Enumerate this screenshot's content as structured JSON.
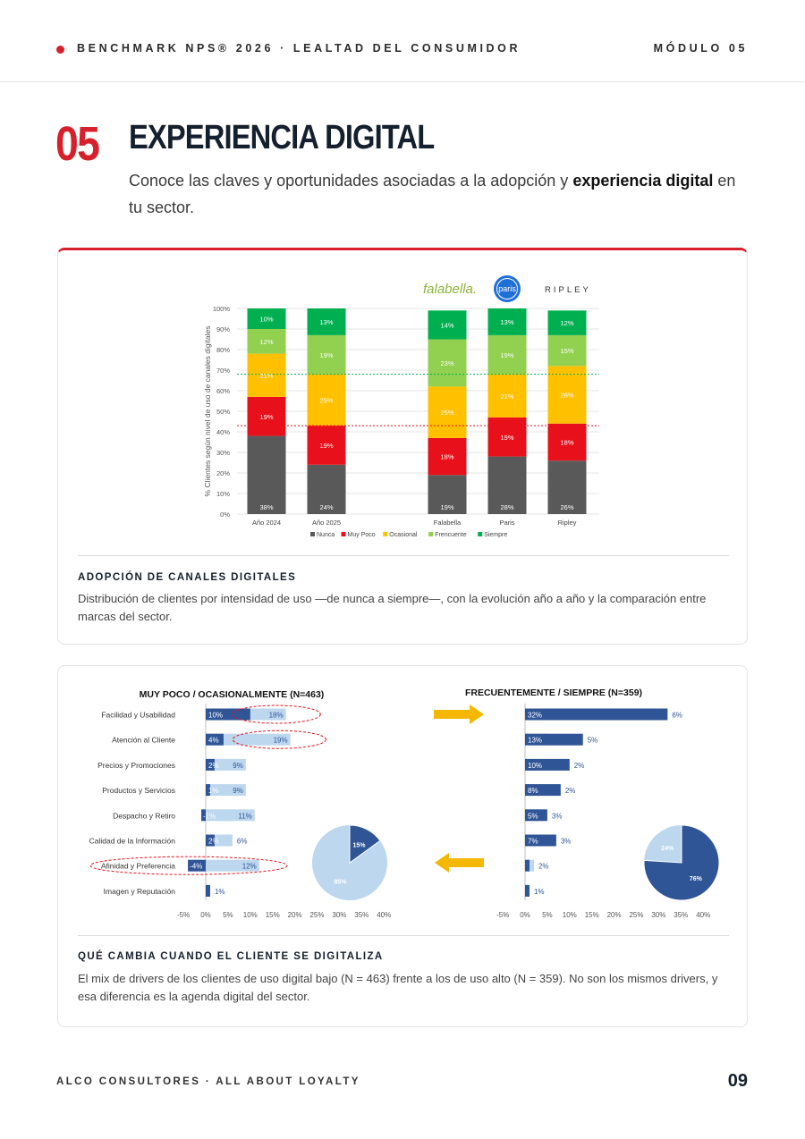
{
  "header": {
    "brand": "BENCHMARK NPS® 2026 · LEALTAD DEL CONSUMIDOR",
    "module": "MÓDULO 05"
  },
  "section": {
    "number": "05",
    "title": "EXPERIENCIA DIGITAL",
    "lead_before": "Conoce las claves y oportunidades asociadas a la adopción y ",
    "lead_bold": "experiencia digital",
    "lead_after": " en tu sector."
  },
  "logos": {
    "falabella": "falabella.",
    "paris": "paris",
    "ripley": "RIPLEY"
  },
  "colors": {
    "accent": "#d6202b",
    "navy": "#15202e",
    "nunca": "#595959",
    "muy_poco": "#e8101a",
    "ocasional": "#ffc000",
    "frecuente": "#92d050",
    "siempre": "#00b050",
    "bar_dark": "#2f5597",
    "bar_light": "#bdd7ee"
  },
  "chart_data": [
    {
      "type": "bar",
      "stacked": true,
      "ylabel": "% Clientes según nivel de uso de canales digitales",
      "ylim": [
        0,
        100
      ],
      "yticks": [
        "0%",
        "10%",
        "20%",
        "30%",
        "40%",
        "50%",
        "60%",
        "70%",
        "80%",
        "90%",
        "100%"
      ],
      "categories": [
        "Año 2024",
        "Año 2025",
        "Falabella",
        "Paris",
        "Ripley"
      ],
      "series": [
        {
          "name": "Nunca",
          "values": [
            38,
            24,
            19,
            28,
            26
          ]
        },
        {
          "name": "Muy Poco",
          "values": [
            19,
            19,
            18,
            19,
            18
          ]
        },
        {
          "name": "Ocasional",
          "values": [
            21,
            25,
            25,
            21,
            28
          ]
        },
        {
          "name": "Frencuente",
          "values": [
            12,
            19,
            23,
            19,
            15
          ]
        },
        {
          "name": "Siempre",
          "values": [
            10,
            13,
            14,
            13,
            12
          ]
        }
      ],
      "reference_lines": [
        43,
        68
      ],
      "legend": "bottom"
    },
    {
      "type": "bar",
      "orientation": "horizontal",
      "title": "MUY POCO / OCASIONALMENTE (N=463)",
      "categories": [
        "Facilidad y Usabilidad",
        "Atención al Cliente",
        "Precios y Promociones",
        "Productos y Servicios",
        "Despacho y Retiro",
        "Calidad de la Información",
        "Afinidad y Preferencia",
        "Imagen y Reputación"
      ],
      "dark_values": [
        10,
        4,
        2,
        1,
        -1,
        2,
        -4,
        1
      ],
      "dark_labels": [
        "10%",
        "4%",
        "2%",
        "1%",
        "-1%",
        "2%",
        "-4%",
        ""
      ],
      "light_values": [
        18,
        19,
        9,
        9,
        11,
        6,
        12,
        1
      ],
      "light_labels": [
        "18%",
        "19%",
        "9%",
        "9%",
        "11%",
        "6%",
        "12%",
        "1%"
      ],
      "highlighted": [
        "Facilidad y Usabilidad",
        "Atención al Cliente",
        "Afinidad y Preferencia"
      ],
      "xlim": [
        -5,
        40
      ],
      "xticks": [
        "-5%",
        "0%",
        "5%",
        "10%",
        "15%",
        "20%",
        "25%",
        "30%",
        "35%",
        "40%"
      ],
      "pie": {
        "values": [
          15,
          85
        ],
        "labels": [
          "15%",
          "85%"
        ]
      }
    },
    {
      "type": "bar",
      "orientation": "horizontal",
      "title": "FRECUENTEMENTE / SIEMPRE (N=359)",
      "dark_values": [
        32,
        13,
        10,
        8,
        5,
        7,
        1,
        1
      ],
      "dark_labels": [
        "32%",
        "13%",
        "10%",
        "8%",
        "5%",
        "7%",
        "",
        ""
      ],
      "light_values": [
        6,
        5,
        2,
        2,
        3,
        3,
        2,
        1
      ],
      "light_labels": [
        "6%",
        "5%",
        "2%",
        "2%",
        "3%",
        "3%",
        "2%",
        "1%"
      ],
      "xlim": [
        -5,
        40
      ],
      "xticks": [
        "-5%",
        "0%",
        "5%",
        "10%",
        "15%",
        "20%",
        "25%",
        "30%",
        "35%",
        "40%"
      ],
      "pie": {
        "values": [
          76,
          24
        ],
        "labels": [
          "76%",
          "24%"
        ]
      }
    }
  ],
  "cards": [
    {
      "title": "ADOPCIÓN DE CANALES DIGITALES",
      "desc": "Distribución de clientes por intensidad de uso —de nunca a siempre—, con la evolución año a año y la comparación entre marcas del sector."
    },
    {
      "title": "QUÉ CAMBIA CUANDO EL CLIENTE SE DIGITALIZA",
      "desc": "El mix de drivers de los clientes de uso digital bajo (N = 463) frente a los de uso alto (N = 359). No son los mismos drivers, y esa diferencia es la agenda digital del sector."
    }
  ],
  "footer": {
    "left": "ALCO CONSULTORES · ALL ABOUT LOYALTY",
    "page": "09"
  }
}
